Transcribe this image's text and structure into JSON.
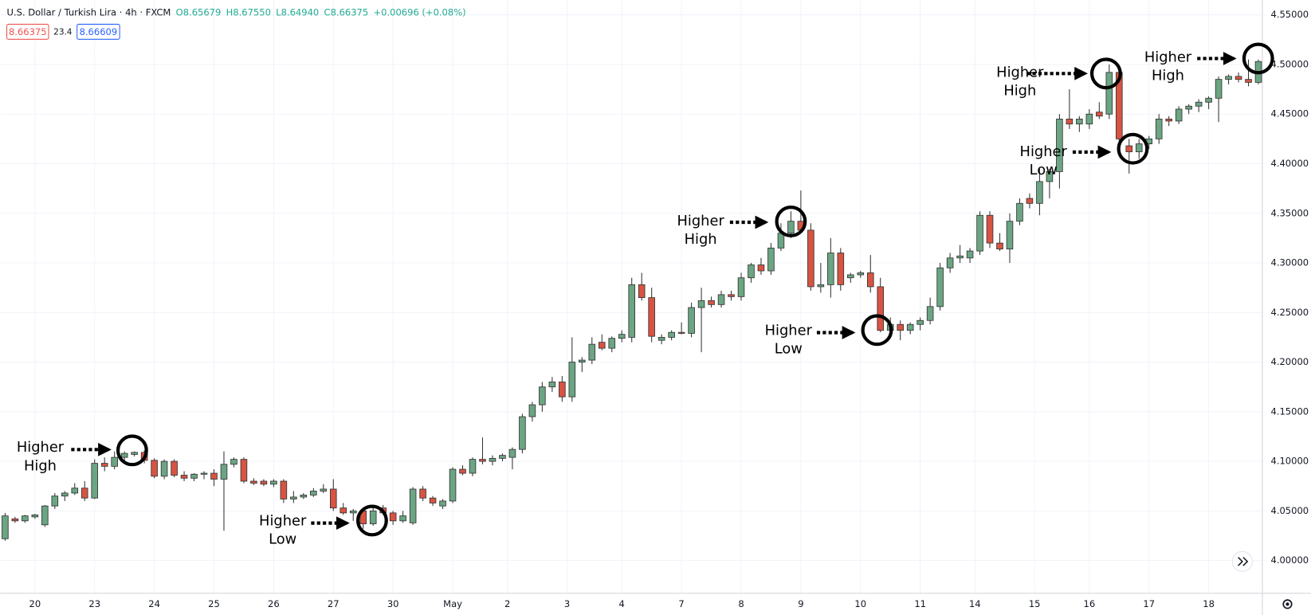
{
  "chart_data": {
    "type": "candlestick",
    "title": "U.S. Dollar / Turkish Lira · 4h · FXCM",
    "header_values": [
      "O8.65679",
      "H8.67550",
      "L8.64940",
      "C8.66375",
      "+0.00696 (+0.08%)"
    ],
    "badges": [
      "8.66375",
      "23.4",
      "8.66609"
    ],
    "up_color": "#6ba583",
    "down_color": "#d75442",
    "grid": true,
    "xlim": [
      -0.5,
      126.4
    ],
    "xticks": [
      {
        "value": 3,
        "label": "20"
      },
      {
        "value": 9,
        "label": "23"
      },
      {
        "value": 15,
        "label": "24"
      },
      {
        "value": 21,
        "label": "25"
      },
      {
        "value": 27,
        "label": "26"
      },
      {
        "value": 33,
        "label": "27"
      },
      {
        "value": 39,
        "label": "30"
      },
      {
        "value": 45,
        "label": "May"
      },
      {
        "value": 50.5,
        "label": "2"
      },
      {
        "value": 56.5,
        "label": "3"
      },
      {
        "value": 62,
        "label": "4"
      },
      {
        "value": 68,
        "label": "7"
      },
      {
        "value": 74,
        "label": "8"
      },
      {
        "value": 80,
        "label": "9"
      },
      {
        "value": 86,
        "label": "10"
      },
      {
        "value": 92,
        "label": "11"
      },
      {
        "value": 97.5,
        "label": "14"
      },
      {
        "value": 103.5,
        "label": "15"
      },
      {
        "value": 109,
        "label": "16"
      },
      {
        "value": 115,
        "label": "17"
      },
      {
        "value": 121,
        "label": "18"
      }
    ],
    "ylim": [
      3.967,
      4.565
    ],
    "yticks": [
      {
        "value": 4.0,
        "label": "4.00000"
      },
      {
        "value": 4.05,
        "label": "4.05000"
      },
      {
        "value": 4.1,
        "label": "4.10000"
      },
      {
        "value": 4.15,
        "label": "4.15000"
      },
      {
        "value": 4.2,
        "label": "4.20000"
      },
      {
        "value": 4.25,
        "label": "4.25000"
      },
      {
        "value": 4.3,
        "label": "4.30000"
      },
      {
        "value": 4.35,
        "label": "4.35000"
      },
      {
        "value": 4.4,
        "label": "4.40000"
      },
      {
        "value": 4.45,
        "label": "4.45000"
      },
      {
        "value": 4.5,
        "label": "4.50000"
      },
      {
        "value": 4.55,
        "label": "4.55000"
      }
    ],
    "open": [
      4.022,
      4.042,
      4.04,
      4.044,
      4.036,
      4.055,
      4.065,
      4.068,
      4.073,
      4.063,
      4.098,
      4.095,
      4.104,
      4.107,
      4.109,
      4.101,
      4.085,
      4.1,
      4.086,
      4.083,
      4.087,
      4.088,
      4.082,
      4.097,
      4.102,
      4.08,
      4.08,
      4.077,
      4.08,
      4.062,
      4.064,
      4.066,
      4.07,
      4.072,
      4.053,
      4.048,
      4.05,
      4.037,
      4.053,
      4.048,
      4.04,
      4.038,
      4.072,
      4.063,
      4.055,
      4.06,
      4.092,
      4.088,
      4.102,
      4.1,
      4.103,
      4.104,
      4.112,
      4.145,
      4.157,
      4.175,
      4.18,
      4.165,
      4.2,
      4.202,
      4.22,
      4.214,
      4.224,
      4.225,
      4.278,
      4.265,
      4.222,
      4.225,
      4.23,
      4.229,
      4.255,
      4.262,
      4.258,
      4.268,
      4.266,
      4.285,
      4.298,
      4.292,
      4.315,
      4.33,
      4.342,
      4.333,
      4.276,
      4.278,
      4.31,
      4.285,
      4.288,
      4.29,
      4.276,
      4.232,
      4.238,
      4.232,
      4.238,
      4.242,
      4.256,
      4.295,
      4.305,
      4.305,
      4.312,
      4.348,
      4.32,
      4.314,
      4.342,
      4.365,
      4.36,
      4.382,
      4.392,
      4.445,
      4.44,
      4.44,
      4.452,
      4.45,
      4.492,
      4.418,
      4.412,
      4.42,
      4.425,
      4.445,
      4.443,
      4.455,
      4.458,
      4.462,
      4.466,
      4.485,
      4.488,
      4.485,
      4.482
    ],
    "high": [
      4.048,
      4.044,
      4.046,
      4.047,
      4.056,
      4.068,
      4.07,
      4.078,
      4.08,
      4.102,
      4.104,
      4.11,
      4.11,
      4.11,
      4.111,
      4.103,
      4.102,
      4.102,
      4.09,
      4.088,
      4.09,
      4.092,
      4.11,
      4.104,
      4.104,
      4.083,
      4.082,
      4.082,
      4.082,
      4.07,
      4.068,
      4.073,
      4.077,
      4.082,
      4.058,
      4.052,
      4.053,
      4.055,
      4.056,
      4.05,
      4.05,
      4.074,
      4.075,
      4.065,
      4.062,
      4.094,
      4.096,
      4.104,
      4.124,
      4.106,
      4.108,
      4.114,
      4.148,
      4.16,
      4.18,
      4.185,
      4.186,
      4.225,
      4.205,
      4.225,
      4.228,
      4.226,
      4.232,
      4.285,
      4.29,
      4.275,
      4.228,
      4.232,
      4.24,
      4.26,
      4.275,
      4.266,
      4.272,
      4.272,
      4.29,
      4.3,
      4.305,
      4.32,
      4.34,
      4.352,
      4.373,
      4.34,
      4.3,
      4.325,
      4.315,
      4.29,
      4.292,
      4.308,
      4.285,
      4.245,
      4.242,
      4.24,
      4.245,
      4.265,
      4.3,
      4.31,
      4.318,
      4.315,
      4.352,
      4.352,
      4.33,
      4.35,
      4.365,
      4.37,
      4.395,
      4.395,
      4.45,
      4.475,
      4.448,
      4.455,
      4.462,
      4.5,
      4.498,
      4.425,
      4.425,
      4.428,
      4.45,
      4.448,
      4.458,
      4.46,
      4.465,
      4.468,
      4.488,
      4.49,
      4.492,
      4.505,
      4.505
    ],
    "low": [
      4.02,
      4.038,
      4.038,
      4.042,
      4.034,
      4.052,
      4.06,
      4.066,
      4.06,
      4.062,
      4.09,
      4.092,
      4.1,
      4.105,
      4.098,
      4.083,
      4.082,
      4.084,
      4.08,
      4.08,
      4.082,
      4.075,
      4.03,
      4.094,
      4.078,
      4.076,
      4.075,
      4.074,
      4.058,
      4.058,
      4.062,
      4.064,
      4.068,
      4.05,
      4.046,
      4.04,
      4.032,
      4.035,
      4.046,
      4.036,
      4.038,
      4.036,
      4.06,
      4.055,
      4.052,
      4.058,
      4.086,
      4.085,
      4.097,
      4.096,
      4.1,
      4.092,
      4.108,
      4.14,
      4.15,
      4.17,
      4.16,
      4.16,
      4.19,
      4.198,
      4.212,
      4.21,
      4.22,
      4.22,
      4.262,
      4.22,
      4.218,
      4.222,
      4.228,
      4.225,
      4.21,
      4.255,
      4.255,
      4.262,
      4.262,
      4.28,
      4.288,
      4.288,
      4.312,
      4.325,
      4.33,
      4.272,
      4.27,
      4.265,
      4.272,
      4.28,
      4.285,
      4.27,
      4.23,
      4.228,
      4.222,
      4.228,
      4.232,
      4.238,
      4.252,
      4.29,
      4.3,
      4.3,
      4.308,
      4.315,
      4.312,
      4.3,
      4.338,
      4.355,
      4.348,
      4.365,
      4.375,
      4.435,
      4.432,
      4.435,
      4.445,
      4.445,
      4.418,
      4.39,
      4.405,
      4.415,
      4.42,
      4.438,
      4.44,
      4.45,
      4.452,
      4.455,
      4.442,
      4.48,
      4.482,
      4.478,
      4.48
    ],
    "close": [
      4.045,
      4.04,
      4.045,
      4.046,
      4.055,
      4.065,
      4.068,
      4.073,
      4.063,
      4.098,
      4.095,
      4.104,
      4.108,
      4.109,
      4.101,
      4.085,
      4.1,
      4.086,
      4.083,
      4.087,
      4.088,
      4.082,
      4.097,
      4.102,
      4.08,
      4.078,
      4.077,
      4.08,
      4.062,
      4.064,
      4.066,
      4.07,
      4.072,
      4.053,
      4.048,
      4.05,
      4.037,
      4.05,
      4.048,
      4.04,
      4.045,
      4.072,
      4.063,
      4.058,
      4.06,
      4.092,
      4.088,
      4.102,
      4.1,
      4.103,
      4.106,
      4.112,
      4.145,
      4.157,
      4.175,
      4.18,
      4.165,
      4.2,
      4.202,
      4.218,
      4.214,
      4.224,
      4.228,
      4.278,
      4.265,
      4.226,
      4.225,
      4.23,
      4.229,
      4.255,
      4.262,
      4.258,
      4.268,
      4.266,
      4.285,
      4.298,
      4.292,
      4.315,
      4.33,
      4.342,
      4.333,
      4.276,
      4.278,
      4.31,
      4.278,
      4.288,
      4.29,
      4.276,
      4.232,
      4.238,
      4.232,
      4.238,
      4.242,
      4.256,
      4.295,
      4.305,
      4.307,
      4.312,
      4.348,
      4.32,
      4.314,
      4.342,
      4.36,
      4.36,
      4.382,
      4.392,
      4.445,
      4.44,
      4.445,
      4.45,
      4.448,
      4.492,
      4.425,
      4.412,
      4.42,
      4.425,
      4.445,
      4.443,
      4.455,
      4.458,
      4.462,
      4.466,
      4.485,
      4.488,
      4.485,
      4.482,
      4.503
    ],
    "annotations": [
      {
        "lines": [
          "Higher",
          "High"
        ]
      },
      {
        "lines": [
          "Higher",
          "Low"
        ]
      },
      {
        "lines": [
          "Higher",
          "High"
        ]
      },
      {
        "lines": [
          "Higher",
          "Low"
        ]
      },
      {
        "lines": [
          "Higher",
          "High"
        ]
      },
      {
        "lines": [
          "Higher",
          "Low"
        ]
      },
      {
        "lines": [
          "Higher",
          "High"
        ]
      }
    ]
  }
}
